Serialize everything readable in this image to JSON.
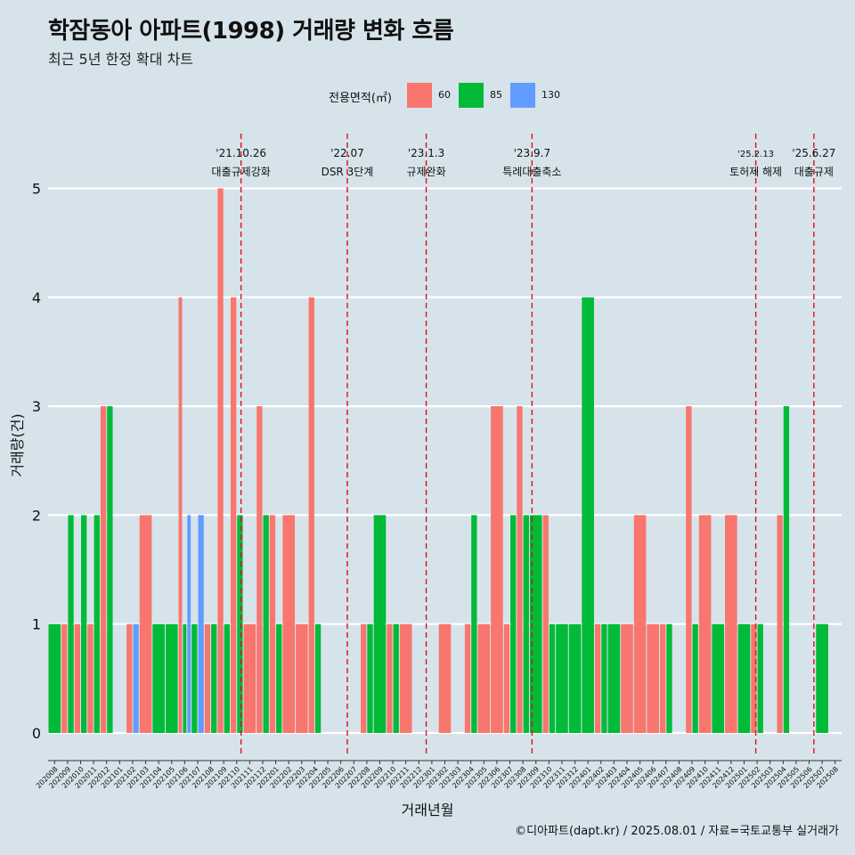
{
  "title": "학잠동아 아파트(1998) 거래량 변화 흐름",
  "subtitle": "최근 5년 한정 확대 차트",
  "caption": "©디아파트(dapt.kr) / 2025.08.01 / 자료=국토교통부 실거래가",
  "legend": {
    "title": "전용면적(㎡)",
    "items": [
      {
        "label": "60",
        "color": "#f8766d"
      },
      {
        "label": "85",
        "color": "#00ba38"
      },
      {
        "label": "130",
        "color": "#619cff"
      }
    ]
  },
  "chart_data": {
    "type": "bar",
    "xlabel": "거래년월",
    "ylabel": "거래량(건)",
    "ylim": [
      0,
      5
    ],
    "yticks": [
      0,
      1,
      2,
      3,
      4,
      5
    ],
    "categories": [
      "202008",
      "202009",
      "202010",
      "202011",
      "202012",
      "202101",
      "202102",
      "202103",
      "202104",
      "202105",
      "202106",
      "202107",
      "202108",
      "202109",
      "202110",
      "202111",
      "202112",
      "202201",
      "202202",
      "202203",
      "202204",
      "202205",
      "202206",
      "202207",
      "202208",
      "202209",
      "202210",
      "202211",
      "202212",
      "202301",
      "202302",
      "202303",
      "202304",
      "202305",
      "202306",
      "202307",
      "202308",
      "202309",
      "202310",
      "202311",
      "202312",
      "202401",
      "202402",
      "202403",
      "202404",
      "202405",
      "202406",
      "202407",
      "202408",
      "202409",
      "202410",
      "202411",
      "202412",
      "202501",
      "202502",
      "202503",
      "202504",
      "202505",
      "202506",
      "202507",
      "202508"
    ],
    "series": [
      {
        "name": "60",
        "values": [
          0,
          1,
          1,
          1,
          3,
          0,
          1,
          2,
          0,
          0,
          4,
          0,
          1,
          5,
          4,
          1,
          3,
          2,
          2,
          1,
          4,
          0,
          0,
          0,
          1,
          0,
          1,
          1,
          0,
          0,
          1,
          0,
          1,
          1,
          3,
          1,
          3,
          0,
          2,
          0,
          0,
          0,
          1,
          0,
          1,
          2,
          1,
          1,
          0,
          3,
          2,
          0,
          2,
          0,
          1,
          0,
          2,
          0,
          0,
          0,
          0
        ]
      },
      {
        "name": "85",
        "values": [
          1,
          2,
          2,
          2,
          3,
          0,
          0,
          0,
          1,
          1,
          1,
          1,
          1,
          1,
          2,
          0,
          2,
          1,
          0,
          0,
          1,
          0,
          0,
          0,
          1,
          2,
          1,
          0,
          0,
          0,
          0,
          0,
          2,
          0,
          0,
          2,
          2,
          2,
          1,
          1,
          1,
          4,
          1,
          1,
          0,
          0,
          0,
          1,
          0,
          1,
          0,
          1,
          0,
          1,
          1,
          0,
          3,
          0,
          0,
          1,
          0
        ]
      },
      {
        "name": "130",
        "values": [
          0,
          0,
          0,
          0,
          0,
          0,
          1,
          0,
          0,
          0,
          2,
          2,
          0,
          0,
          0,
          0,
          0,
          0,
          0,
          0,
          0,
          0,
          0,
          0,
          0,
          0,
          0,
          0,
          0,
          0,
          0,
          0,
          0,
          0,
          0,
          0,
          0,
          0,
          0,
          0,
          0,
          0,
          0,
          0,
          0,
          0,
          0,
          0,
          0,
          0,
          0,
          0,
          0,
          0,
          0,
          0,
          0,
          0,
          0,
          0,
          0
        ]
      }
    ],
    "events": [
      {
        "date": "'21.10.26",
        "label": "대출규제강화",
        "month": "202110",
        "day": 26
      },
      {
        "date": "'22.07",
        "label": "DSR 3단계",
        "month": "202207",
        "day": 1
      },
      {
        "date": "'23.1.3",
        "label": "규제완화",
        "month": "202301",
        "day": 3
      },
      {
        "date": "'23.9.7",
        "label": "특례대출축소",
        "month": "202309",
        "day": 7
      },
      {
        "date": "'25.2.13",
        "label": "토허제 해제",
        "month": "202502",
        "day": 13
      },
      {
        "date": "'25.6.27",
        "label": "대출규제",
        "month": "202506",
        "day": 27
      }
    ],
    "grid": true,
    "legend_position": "top"
  }
}
